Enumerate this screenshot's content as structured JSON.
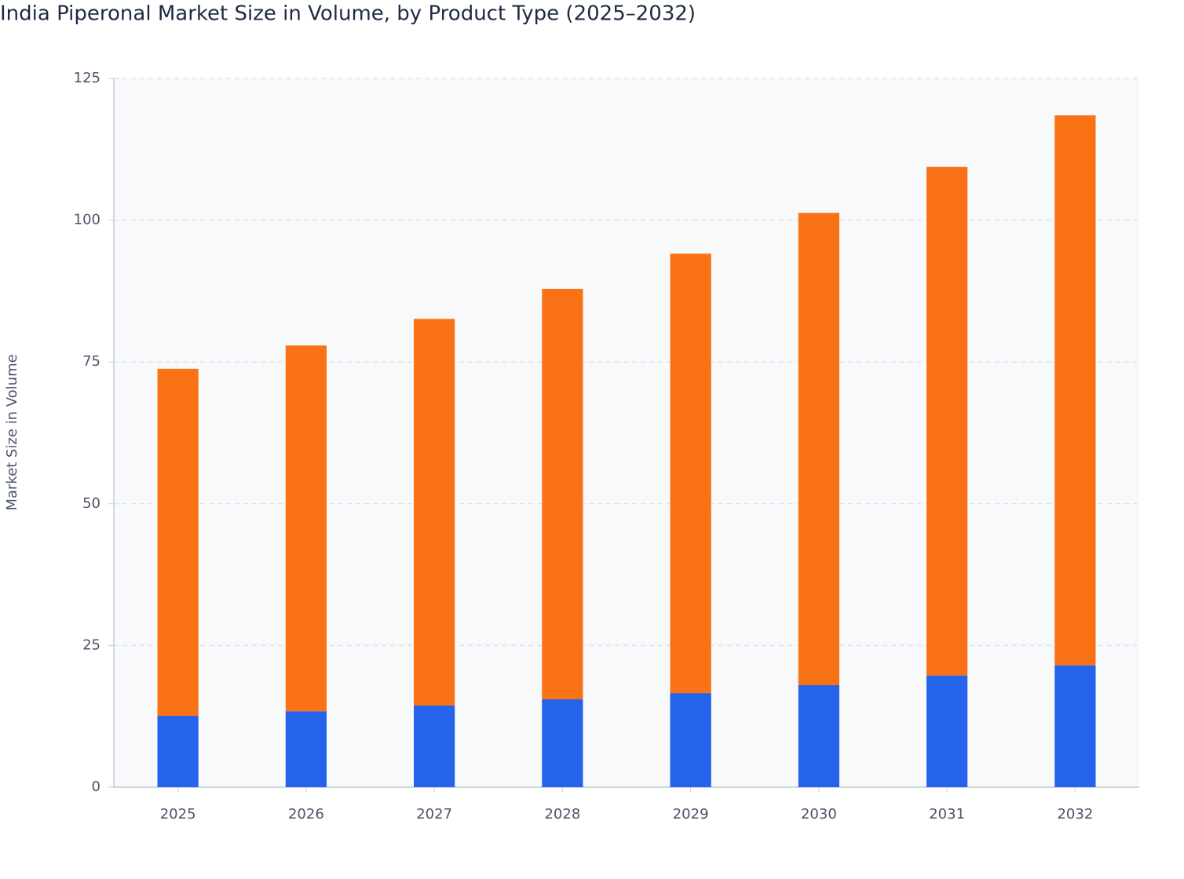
{
  "chart_data": {
    "type": "stacked_bar",
    "title": "India Piperonal Market Size in Volume, by Product Type (2025–2032)",
    "y_label": "Market Size in Volume",
    "categories": [
      "2025",
      "2026",
      "2027",
      "2028",
      "2029",
      "2030",
      "2031",
      "2032"
    ],
    "series": [
      {
        "color": "#2563eb",
        "values": [
          12.6,
          13.4,
          14.4,
          15.5,
          16.6,
          18.0,
          19.7,
          21.5
        ]
      },
      {
        "color": "#f97316",
        "values": [
          61.2,
          64.5,
          68.2,
          72.4,
          77.5,
          83.3,
          89.7,
          97.0
        ]
      }
    ],
    "ylim": [
      0,
      125
    ],
    "yticks": [
      0,
      25,
      50,
      75,
      100,
      125
    ],
    "grid": true
  }
}
